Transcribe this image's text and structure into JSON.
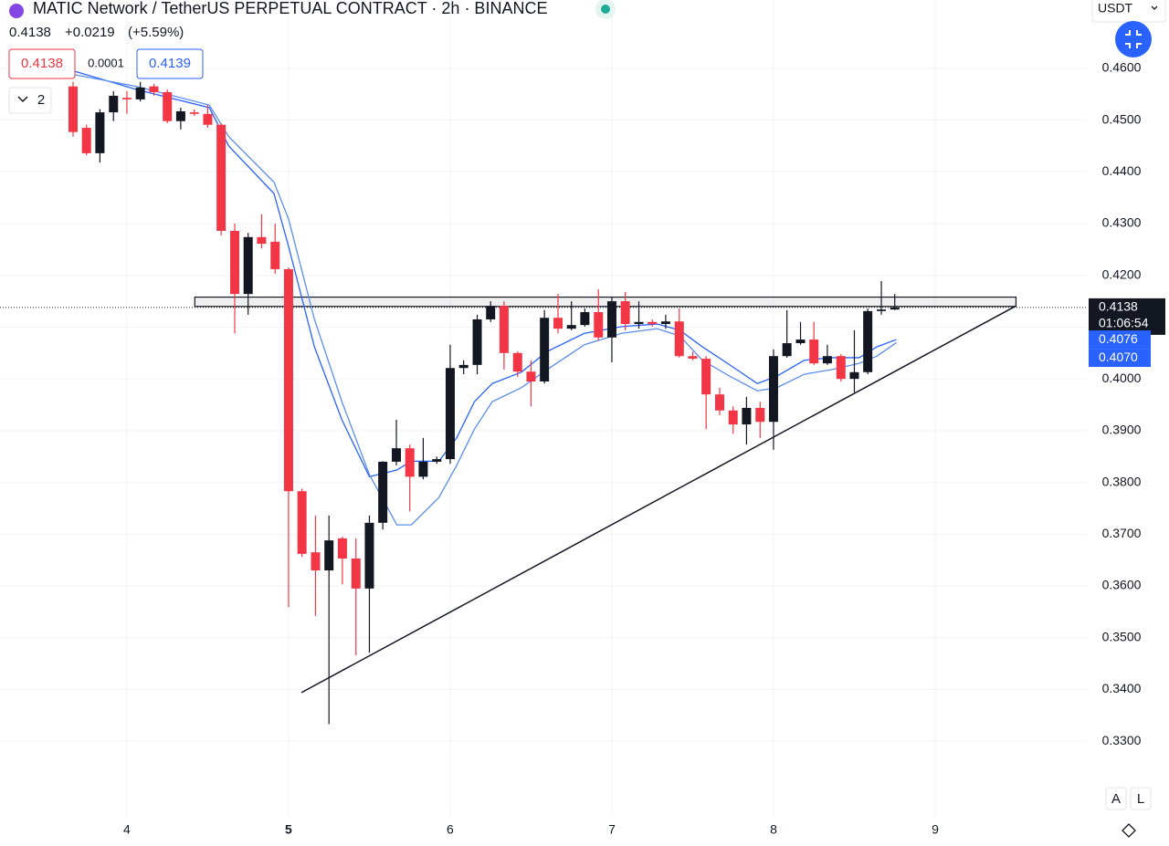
{
  "header": {
    "title": "MATIC Network / TetherUS PERPETUAL CONTRACT · 2h · BINANCE",
    "change": "+0.0219",
    "change_pct": "(+5.59%)",
    "sell": "0.4138",
    "spread": "0.0001",
    "buy": "0.4139",
    "indicators": "2",
    "currency": "USDT",
    "scale_auto": "A",
    "scale_log": "L"
  },
  "chart_data": {
    "type": "candlestick",
    "x": [
      3.667,
      3.75,
      3.833,
      3.917,
      4,
      4.083,
      4.167,
      4.25,
      4.333,
      4.417,
      4.5,
      4.583,
      4.667,
      4.75,
      4.833,
      4.917,
      5,
      5.083,
      5.167,
      5.25,
      5.333,
      5.417,
      5.5,
      5.583,
      5.667,
      5.75,
      5.833,
      5.917,
      6,
      6.083,
      6.167,
      6.25,
      6.333,
      6.417,
      6.5,
      6.583,
      6.667,
      6.75,
      6.833,
      6.917,
      7,
      7.083,
      7.167,
      7.25,
      7.333,
      7.417,
      7.5,
      7.583,
      7.667,
      7.75,
      7.833,
      7.917,
      8,
      8.083,
      8.167,
      8.25,
      8.333,
      8.417,
      8.5,
      8.583,
      8.667,
      8.75
    ],
    "open": [
      0.4565,
      0.4485,
      0.4436,
      0.4515,
      0.4543,
      0.454,
      0.4565,
      0.4554,
      0.4498,
      0.4515,
      0.4512,
      0.4491,
      0.4286,
      0.4164,
      0.4274,
      0.4265,
      0.4212,
      0.3783,
      0.3665,
      0.363,
      0.3692,
      0.3653,
      0.3595,
      0.3722,
      0.384,
      0.3866,
      0.3811,
      0.384,
      0.3845,
      0.4021,
      0.4027,
      0.4115,
      0.4141,
      0.405,
      0.4014,
      0.3995,
      0.4118,
      0.4097,
      0.4104,
      0.4129,
      0.408,
      0.415,
      0.4106,
      0.411,
      0.4106,
      0.4111,
      0.4044,
      0.4039,
      0.397,
      0.3939,
      0.3912,
      0.3944,
      0.3917,
      0.4044,
      0.4069,
      0.4076,
      0.403,
      0.4044,
      0.4,
      0.4013,
      0.4131,
      0.4134
    ],
    "high": [
      0.4574,
      0.4491,
      0.4521,
      0.4556,
      0.4556,
      0.4574,
      0.457,
      0.4559,
      0.4524,
      0.4521,
      0.4529,
      0.4494,
      0.43,
      0.4282,
      0.4318,
      0.43,
      0.4215,
      0.3788,
      0.3736,
      0.3736,
      0.3695,
      0.3692,
      0.3736,
      0.3841,
      0.3921,
      0.3873,
      0.3886,
      0.385,
      0.4066,
      0.4036,
      0.4124,
      0.415,
      0.415,
      0.4053,
      0.4036,
      0.4133,
      0.4164,
      0.415,
      0.4136,
      0.4173,
      0.4159,
      0.4168,
      0.415,
      0.4115,
      0.4124,
      0.4136,
      0.4053,
      0.4044,
      0.3983,
      0.3947,
      0.3965,
      0.3956,
      0.4057,
      0.4133,
      0.411,
      0.411,
      0.4066,
      0.4048,
      0.4094,
      0.4136,
      0.4189,
      0.4164
    ],
    "low": [
      0.4468,
      0.4432,
      0.4418,
      0.4498,
      0.4512,
      0.4536,
      0.4547,
      0.4494,
      0.4482,
      0.4508,
      0.4485,
      0.4277,
      0.4088,
      0.4124,
      0.4252,
      0.4203,
      0.3559,
      0.3656,
      0.3542,
      0.3333,
      0.3603,
      0.3466,
      0.3471,
      0.3709,
      0.3833,
      0.3744,
      0.3806,
      0.3836,
      0.3836,
      0.4009,
      0.4009,
      0.411,
      0.4018,
      0.4004,
      0.3947,
      0.3991,
      0.4088,
      0.4094,
      0.4101,
      0.4074,
      0.4032,
      0.4094,
      0.4097,
      0.4101,
      0.4097,
      0.4041,
      0.4036,
      0.3903,
      0.393,
      0.3894,
      0.3873,
      0.3886,
      0.3863,
      0.4041,
      0.4066,
      0.4027,
      0.4027,
      0.3995,
      0.3974,
      0.4009,
      0.4124,
      0.4133
    ],
    "close": [
      0.4477,
      0.4436,
      0.4515,
      0.4547,
      0.454,
      0.4563,
      0.4554,
      0.4498,
      0.4517,
      0.4512,
      0.4491,
      0.4286,
      0.4164,
      0.4274,
      0.4261,
      0.4212,
      0.3783,
      0.3662,
      0.363,
      0.3688,
      0.3653,
      0.3595,
      0.3722,
      0.384,
      0.3866,
      0.3811,
      0.384,
      0.3845,
      0.4021,
      0.4027,
      0.4115,
      0.4141,
      0.405,
      0.4014,
      0.3995,
      0.4118,
      0.4097,
      0.4104,
      0.4129,
      0.408,
      0.415,
      0.4106,
      0.411,
      0.4106,
      0.4111,
      0.4044,
      0.4039,
      0.397,
      0.3939,
      0.3912,
      0.3944,
      0.3917,
      0.4044,
      0.4069,
      0.4076,
      0.403,
      0.4044,
      0.4,
      0.4013,
      0.4131,
      0.4134,
      0.4138
    ],
    "up_color": "#131722",
    "down_color": "#f23645",
    "overlays": [
      {
        "color": "#2962ff",
        "x": [
          3.67,
          4.06,
          4.51,
          4.63,
          4.91,
          5.0,
          5.16,
          5.33,
          5.5,
          5.67,
          5.76,
          5.93,
          6.04,
          6.15,
          6.26,
          6.44,
          6.6,
          6.83,
          7.06,
          7.28,
          7.42,
          7.56,
          7.73,
          7.9,
          8.02,
          8.19,
          8.36,
          8.53,
          8.64,
          8.76
        ],
        "values": [
          0.4595,
          0.4559,
          0.4524,
          0.445,
          0.4358,
          0.4256,
          0.4062,
          0.3921,
          0.3811,
          0.3824,
          0.3841,
          0.3841,
          0.3886,
          0.3956,
          0.3991,
          0.4013,
          0.4053,
          0.4088,
          0.4101,
          0.4106,
          0.4094,
          0.4062,
          0.4027,
          0.3991,
          0.4005,
          0.4036,
          0.4041,
          0.4041,
          0.4062,
          0.4076
        ]
      },
      {
        "color": "#5b8def",
        "x": [
          3.67,
          4.06,
          4.51,
          4.63,
          4.91,
          5.0,
          5.16,
          5.33,
          5.5,
          5.67,
          5.76,
          5.93,
          6.04,
          6.15,
          6.26,
          6.44,
          6.6,
          6.83,
          7.06,
          7.28,
          7.42,
          7.56,
          7.73,
          7.9,
          8.02,
          8.19,
          8.36,
          8.53,
          8.64,
          8.76
        ],
        "values": [
          0.4588,
          0.4565,
          0.4529,
          0.4468,
          0.438,
          0.4309,
          0.4115,
          0.3956,
          0.3815,
          0.3718,
          0.3718,
          0.3771,
          0.3833,
          0.3903,
          0.3956,
          0.3983,
          0.4018,
          0.4066,
          0.4088,
          0.4097,
          0.4083,
          0.4036,
          0.4005,
          0.3977,
          0.3983,
          0.4009,
          0.4018,
          0.403,
          0.4044,
          0.407
        ]
      }
    ],
    "trendline": {
      "x": [
        5.08,
        9.5
      ],
      "values": [
        0.3394,
        0.4141
      ]
    },
    "zone": {
      "x": [
        4.42,
        9.5
      ],
      "values": [
        0.4158,
        0.414
      ]
    },
    "last_price": 0.4138,
    "countdown": "01:06:54",
    "price_markers": [
      {
        "value": 0.4076,
        "color": "#2962ff"
      },
      {
        "value": {
          "value": 0.407,
          "label": "0.4070"
        },
        "color": "#2962ff"
      }
    ],
    "xlim": [
      3.215,
      9.938
    ],
    "ylim": [
      0.3154,
      0.4732
    ],
    "xticks": [
      4,
      5,
      6,
      7,
      8,
      9
    ],
    "yticks": [
      {
        "value": 0.33,
        "label": "0.3300"
      },
      {
        "value": 0.34,
        "label": "0.3400"
      },
      {
        "value": 0.35,
        "label": "0.3500"
      },
      {
        "value": 0.36,
        "label": "0.3600"
      },
      {
        "value": 0.37,
        "label": "0.3700"
      },
      {
        "value": 0.38,
        "label": "0.3800"
      },
      {
        "value": 0.39,
        "label": "0.3900"
      },
      {
        "value": 0.4,
        "label": "0.4000"
      },
      {
        "value": 0.41,
        "label": "0.4100"
      },
      {
        "value": 0.42,
        "label": "0.4200"
      },
      {
        "value": 0.43,
        "label": "0.4300"
      },
      {
        "value": 0.44,
        "label": "0.4400"
      },
      {
        "value": 0.45,
        "label": "0.4500"
      },
      {
        "value": 0.46,
        "label": "0.4600"
      }
    ],
    "grid": true
  }
}
